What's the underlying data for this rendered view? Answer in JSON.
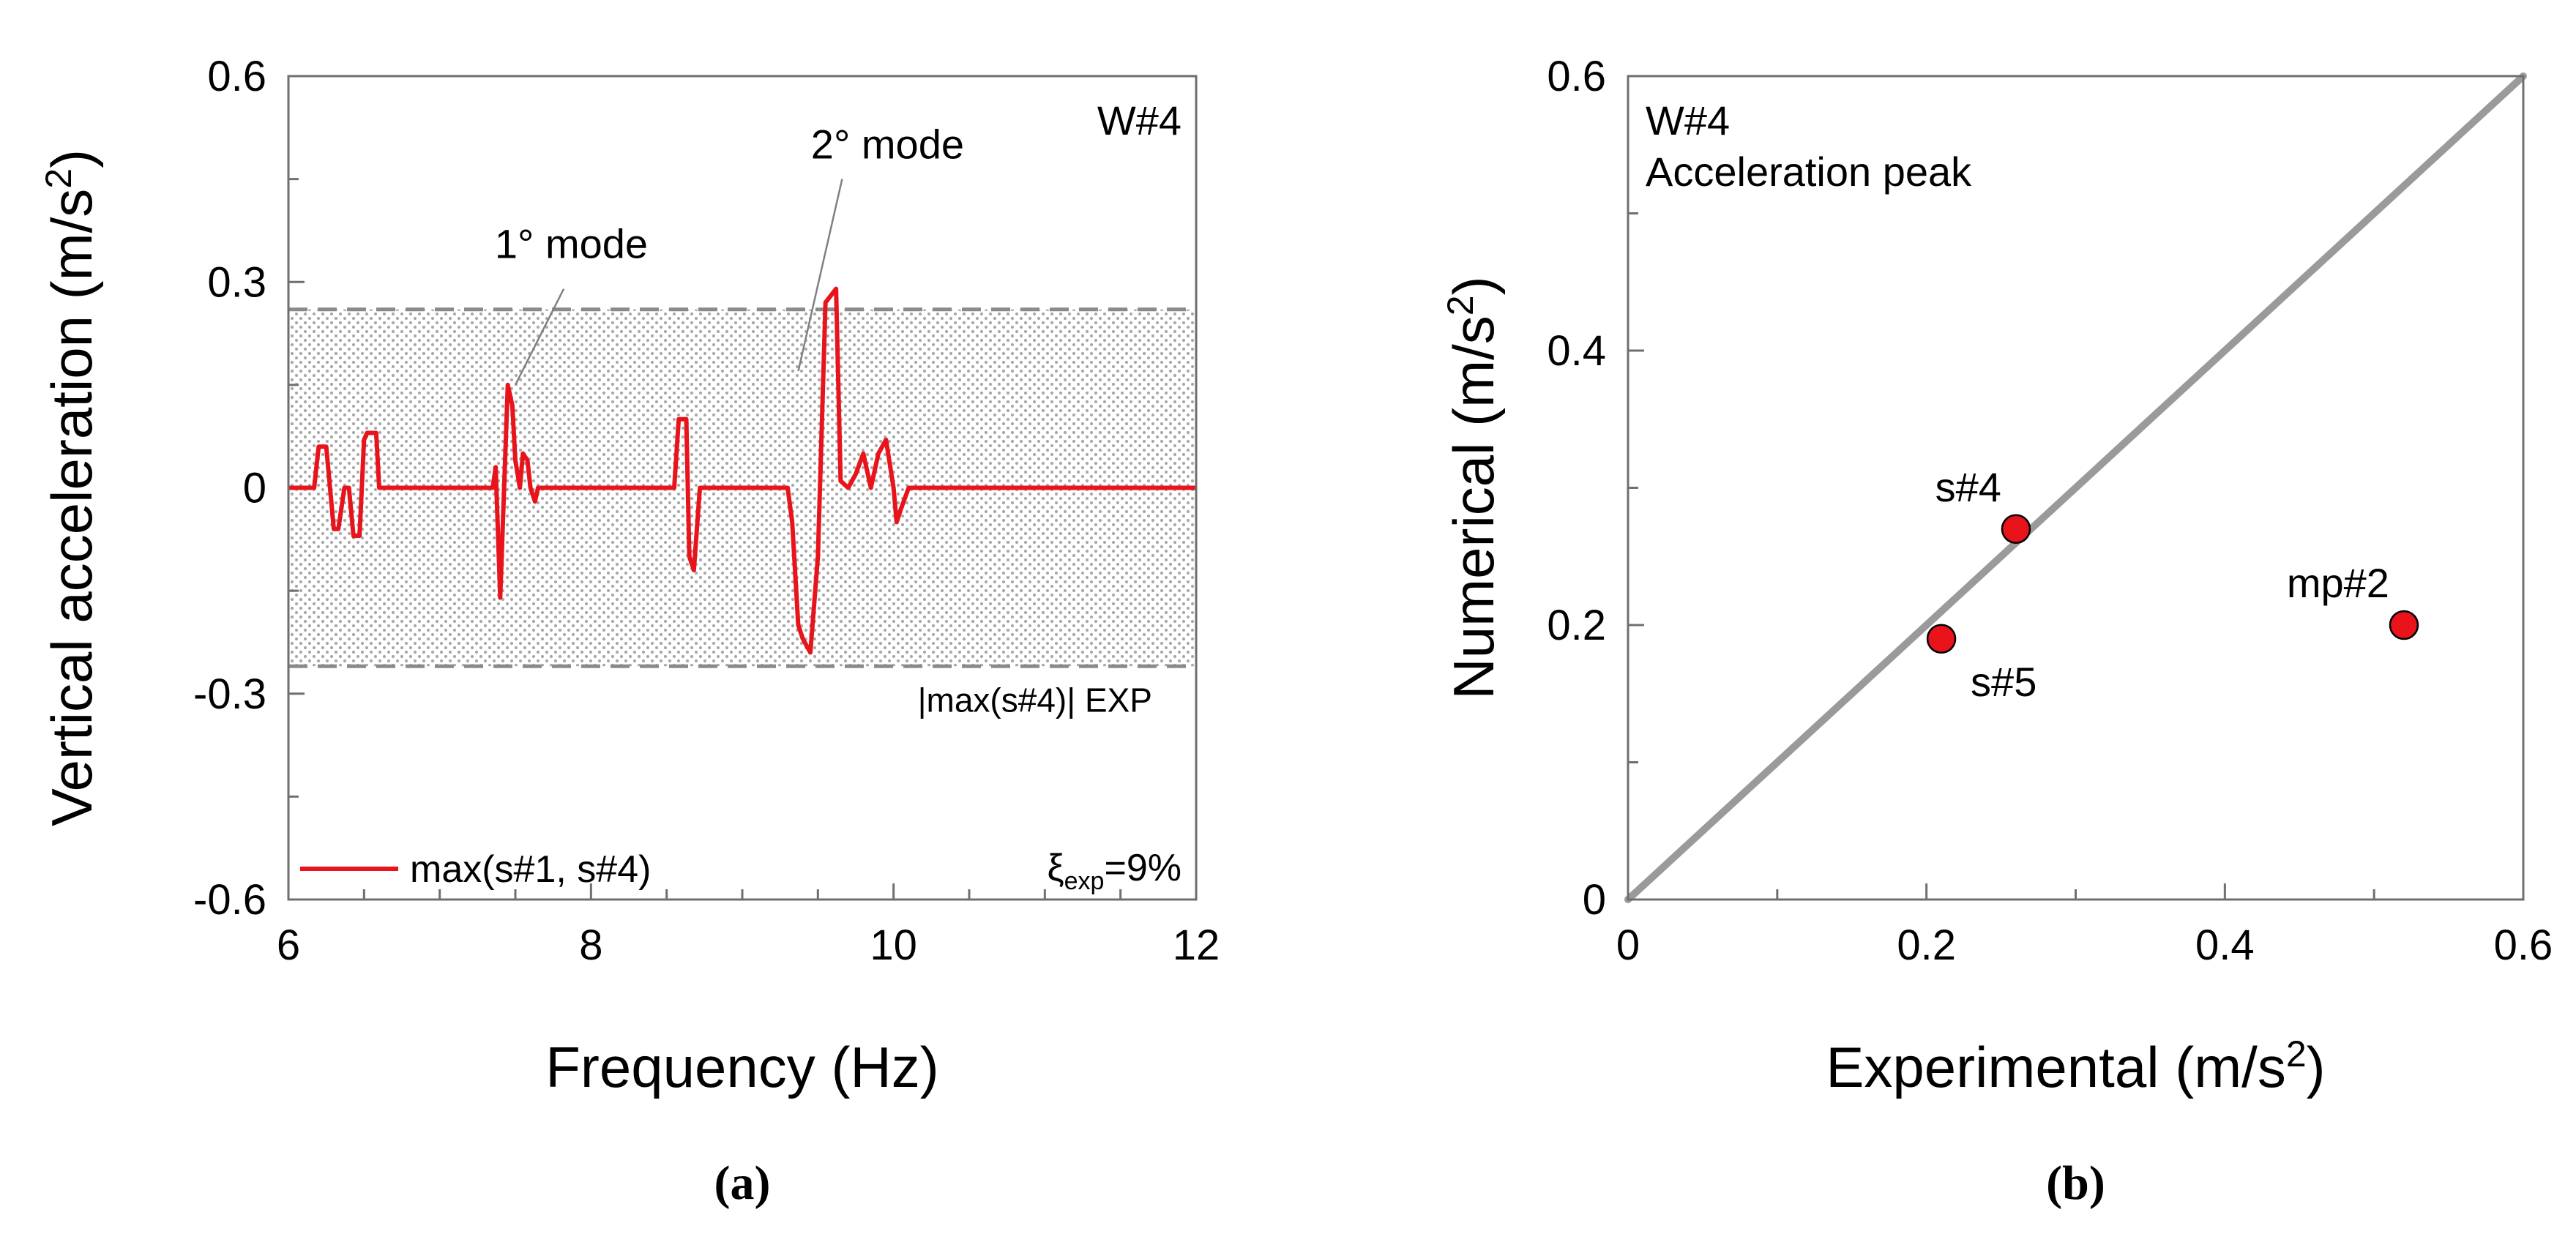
{
  "chart_data": [
    {
      "type": "line",
      "panel": "a",
      "caption": "(a)",
      "xlabel": "Frequency  (Hz)",
      "ylabel": "Vertical acceleration (m/s²)",
      "ylabel_main": "Vertical acceleration (m/s",
      "ylabel_sup": "2",
      "ylabel_close": ")",
      "xlim": [
        6,
        12
      ],
      "ylim": [
        -0.6,
        0.6
      ],
      "xticks": [
        6,
        8,
        10,
        12
      ],
      "xtick_labels": [
        "6",
        "8",
        "10",
        "12"
      ],
      "yticks": [
        0.6,
        0.3,
        0,
        -0.3,
        -0.6
      ],
      "ytick_labels": [
        "0.6",
        "0.3",
        "0",
        "-0.3",
        "-0.6"
      ],
      "band": {
        "lower": -0.26,
        "upper": 0.26,
        "label": "|max(s#4)| EXP"
      },
      "corner_label": "W#4",
      "damping": {
        "symbol": "ξ",
        "subscript": "exp",
        "value": "=9%"
      },
      "legend": {
        "label": "max(s#1, s#4)",
        "color": "#e8131b",
        "position": "bottom-left"
      },
      "annotations": [
        {
          "text": "1° mode",
          "x": 7.5,
          "y": 0.15
        },
        {
          "text": "2° mode",
          "x": 9.35,
          "y": 0.17
        }
      ],
      "series": [
        {
          "name": "max(s#1, s#4)",
          "color": "#e8131b",
          "x": [
            6.0,
            6.17,
            6.2,
            6.25,
            6.3,
            6.33,
            6.37,
            6.4,
            6.43,
            6.47,
            6.5,
            6.52,
            6.58,
            6.6,
            7.35,
            7.37,
            7.4,
            7.45,
            7.48,
            7.5,
            7.53,
            7.55,
            7.58,
            7.6,
            7.63,
            7.65,
            7.7,
            7.75,
            8.55,
            8.58,
            8.63,
            8.65,
            8.68,
            8.72,
            8.75,
            8.78,
            9.3,
            9.33,
            9.37,
            9.4,
            9.45,
            9.5,
            9.55,
            9.62,
            9.65,
            9.7,
            9.75,
            9.8,
            9.85,
            9.9,
            9.95,
            10.0,
            10.02,
            10.05,
            10.1,
            10.15,
            12.0
          ],
          "y": [
            0.0,
            0.0,
            0.06,
            0.06,
            -0.06,
            -0.06,
            0.0,
            0.0,
            -0.07,
            -0.07,
            0.07,
            0.08,
            0.08,
            0.0,
            0.0,
            0.03,
            -0.16,
            0.15,
            0.12,
            0.04,
            0.0,
            0.05,
            0.04,
            0.0,
            -0.02,
            0.0,
            0.0,
            0.0,
            0.0,
            0.1,
            0.1,
            -0.1,
            -0.12,
            0.0,
            0.0,
            0.0,
            0.0,
            -0.05,
            -0.2,
            -0.22,
            -0.24,
            -0.1,
            0.27,
            0.29,
            0.01,
            0.0,
            0.02,
            0.05,
            0.0,
            0.05,
            0.07,
            0.0,
            -0.05,
            -0.03,
            0.0,
            0.0,
            0.0
          ]
        }
      ]
    },
    {
      "type": "scatter",
      "panel": "b",
      "caption": "(b)",
      "xlabel": "Experimental  (m/s²)",
      "xlabel_main": "Experimental  (m/s",
      "xlabel_sup": "2",
      "xlabel_close": ")",
      "ylabel": "Numerical  (m/s²)",
      "ylabel_main": "Numerical  (m/s",
      "ylabel_sup": "2",
      "ylabel_close": ")",
      "xlim": [
        0,
        0.6
      ],
      "ylim": [
        0,
        0.6
      ],
      "xticks": [
        0,
        0.2,
        0.4,
        0.6
      ],
      "xtick_labels": [
        "0",
        "0.2",
        "0.4",
        "0.6"
      ],
      "yticks": [
        0,
        0.2,
        0.4,
        0.6
      ],
      "ytick_labels": [
        "0",
        "0.2",
        "0.4",
        "0.6"
      ],
      "title_lines": [
        "W#4",
        "Acceleration peak"
      ],
      "reference_line": {
        "from": [
          0,
          0
        ],
        "to": [
          0.6,
          0.6
        ],
        "color": "#9a9a9a"
      },
      "point_color": "#e8131b",
      "points": [
        {
          "label": "s#4",
          "x": 0.26,
          "y": 0.27,
          "label_pos": "above-left"
        },
        {
          "label": "s#5",
          "x": 0.21,
          "y": 0.19,
          "label_pos": "below-right"
        },
        {
          "label": "mp#2",
          "x": 0.52,
          "y": 0.2,
          "label_pos": "above-left"
        }
      ]
    }
  ]
}
